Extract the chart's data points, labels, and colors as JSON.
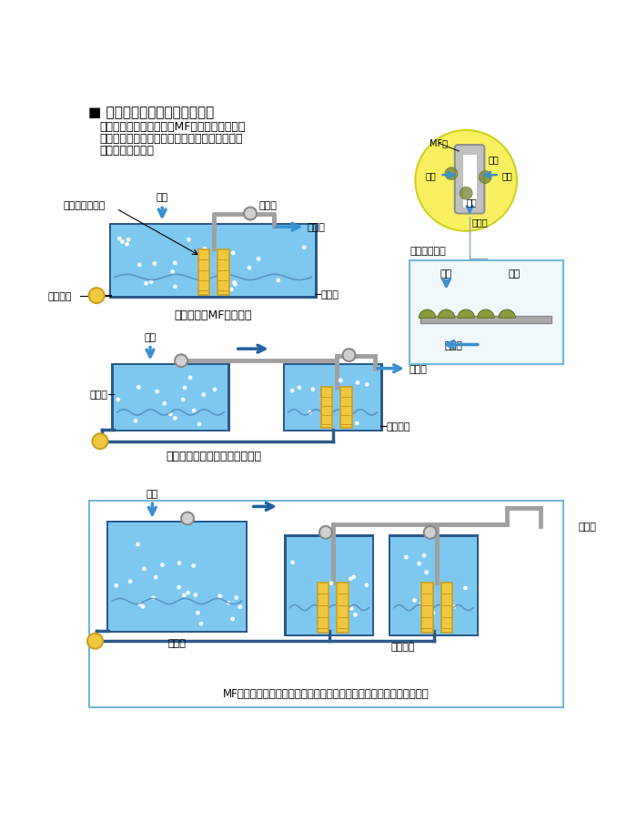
{
  "title": "■ 膜分離式活性汚泥法のしくみ",
  "description": "膜分離式活性汚泥法は、MF膜を曙気槽内に入\nれて吸引する方法と、別槽で処理水を吸引する\n方法があります。",
  "bg_color": "#ffffff",
  "tank_fill": "#7ec8f0",
  "tank_border": "#4a90c8",
  "tank_dark": "#2a5a8a",
  "membrane_color": "#f0c840",
  "membrane_stripe": "#c8a020",
  "blower_fill": "#f0c840",
  "blower_stroke": "#c8a020",
  "pump_fill": "#d0d0d0",
  "pump_stroke": "#888888",
  "arrow_blue": "#3a90d0",
  "arrow_dark_blue": "#2060a0",
  "pipe_color": "#a0a0a0",
  "bubble_color": "#ffffff",
  "wave_color": "#4a80b0",
  "yellow_circle_fill": "#f8f060",
  "yellow_circle_stroke": "#d0d020",
  "mf_tube_outer": "#b8b8b8",
  "mf_tube_inner": "#ffffff",
  "dirt_color": "#8a9a40",
  "box_stroke": "#70b8d8",
  "box_fill": "#ffffff",
  "caption1": "曙気槽内にMF膜を設置",
  "caption2": "曙気槽と膜分離槽を別々に設置",
  "caption3": "MF膜を洗浄しやすいように、膜分離槽を多槽にする場合もあります。",
  "label_raw_water": "原水",
  "label_treated": "処理水",
  "label_mem_unit": "膜分離ユニット",
  "label_blower": "ブロワー",
  "label_pump": "ポンプ",
  "label_aeration": "曙気槽",
  "label_mem_tank": "膜分離槽",
  "label_mf": "MF膜",
  "label_dirt": "汚れ",
  "label_mem_image": "膜面イメージ"
}
